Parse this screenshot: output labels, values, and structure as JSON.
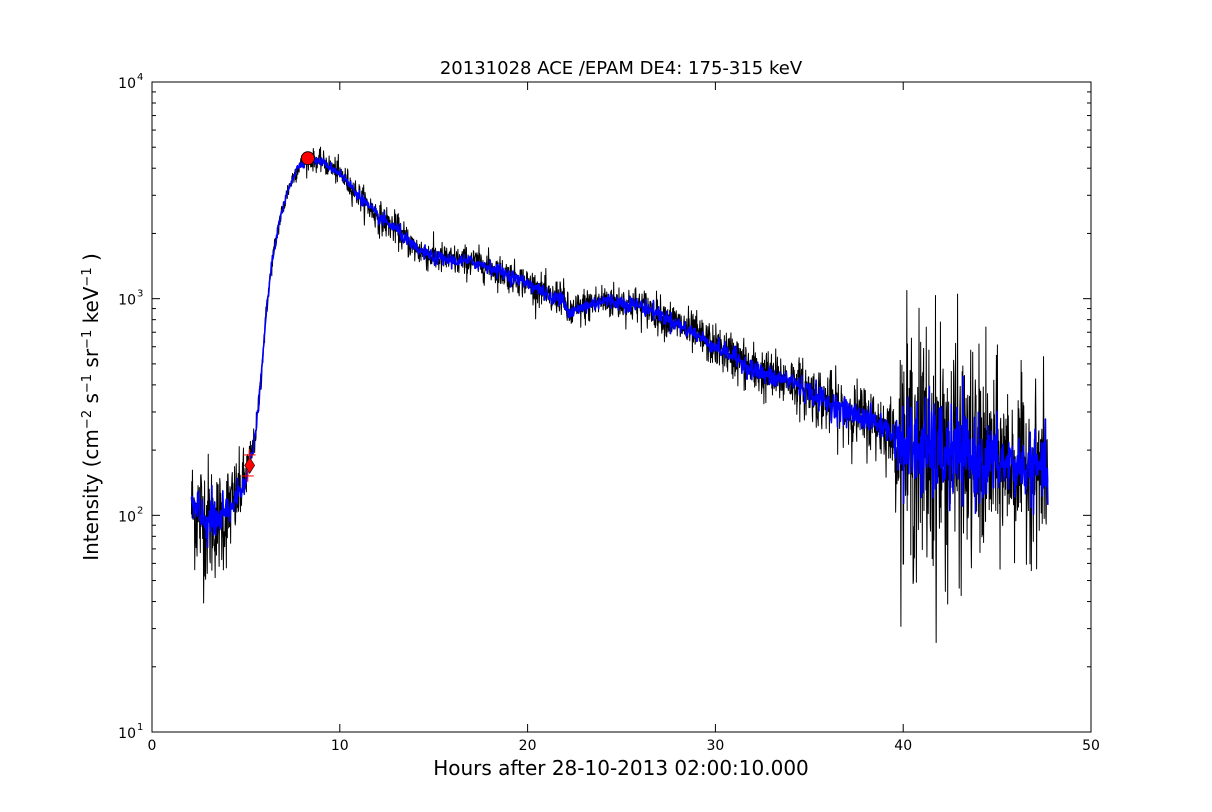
{
  "chart_data": {
    "type": "line",
    "title": "20131028 ACE /EPAM DE4: 175-315 keV",
    "xlabel": "Hours after 28-10-2013 02:00:10.000",
    "ylabel": {
      "base": "Intensity (cm",
      "sup1": "−2",
      "mid1": " s",
      "sup2": "−1",
      "mid2": " sr",
      "sup3": "−1",
      "mid3": " keV",
      "sup4": "−1",
      "end": " )"
    },
    "xlim": [
      0,
      50
    ],
    "ylim": [
      10,
      10000
    ],
    "yscale": "log",
    "grid": false,
    "x_ticks": [
      0,
      10,
      20,
      30,
      40,
      50
    ],
    "x_tick_labels": [
      "0",
      "10",
      "20",
      "30",
      "40",
      "50"
    ],
    "y_ticks": [
      10,
      100,
      1000,
      10000
    ],
    "y_tick_labels": [
      {
        "base": "10",
        "exp": "1"
      },
      {
        "base": "10",
        "exp": "2"
      },
      {
        "base": "10",
        "exp": "3"
      },
      {
        "base": "10",
        "exp": "4"
      }
    ],
    "series": [
      {
        "role": "raw",
        "color": "#000000",
        "x": [
          2.1,
          2.5,
          3.0,
          3.5,
          4.0,
          4.5,
          4.9,
          5.2,
          5.5,
          5.8,
          6.1,
          6.4,
          6.8,
          7.3,
          7.8,
          8.3,
          9.0,
          10.0,
          11.0,
          12.0,
          13.0,
          14.0,
          15.0,
          16.0,
          17.0,
          18.0,
          19.0,
          20.0,
          20.8,
          21.3,
          21.8,
          22.2,
          22.6,
          23.0,
          24.0,
          25.0,
          26.0,
          27.0,
          28.0,
          29.0,
          30.0,
          31.0,
          32.0,
          33.0,
          34.0,
          35.0,
          36.0,
          37.0,
          38.0,
          39.0,
          39.5,
          40.0,
          41.0,
          42.0,
          43.0,
          44.0,
          45.0,
          46.0,
          47.0,
          47.7
        ],
        "y": [
          110,
          100,
          95,
          92,
          102,
          120,
          145,
          170,
          230,
          420,
          900,
          1500,
          2300,
          3300,
          4100,
          4400,
          4300,
          3800,
          3000,
          2400,
          2100,
          1700,
          1550,
          1500,
          1480,
          1400,
          1280,
          1180,
          1080,
          980,
          1050,
          850,
          880,
          920,
          980,
          960,
          930,
          850,
          760,
          680,
          600,
          540,
          470,
          430,
          420,
          370,
          330,
          300,
          280,
          255,
          230,
          210,
          200,
          195,
          185,
          180,
          175,
          170,
          165,
          160
        ],
        "noise": [
          0.2,
          0.25,
          0.25,
          0.2,
          0.2,
          0.15,
          0.12,
          0.1,
          0.05,
          0.05,
          0.04,
          0.04,
          0.04,
          0.04,
          0.04,
          0.04,
          0.04,
          0.05,
          0.05,
          0.06,
          0.06,
          0.06,
          0.06,
          0.06,
          0.06,
          0.06,
          0.06,
          0.06,
          0.06,
          0.07,
          0.07,
          0.07,
          0.07,
          0.07,
          0.07,
          0.07,
          0.07,
          0.07,
          0.08,
          0.08,
          0.08,
          0.09,
          0.1,
          0.1,
          0.1,
          0.11,
          0.12,
          0.12,
          0.13,
          0.13,
          0.14,
          0.45,
          0.5,
          0.5,
          0.45,
          0.4,
          0.35,
          0.3,
          0.3,
          0.3
        ]
      },
      {
        "role": "smoothed",
        "color": "#0000ff",
        "x": [
          2.1,
          2.5,
          3.0,
          3.5,
          4.0,
          4.5,
          4.9,
          5.2,
          5.5,
          5.8,
          6.1,
          6.4,
          6.8,
          7.3,
          7.8,
          8.3,
          9.0,
          10.0,
          11.0,
          12.0,
          13.0,
          14.0,
          15.0,
          16.0,
          17.0,
          18.0,
          19.0,
          20.0,
          20.8,
          21.3,
          21.8,
          22.2,
          22.6,
          23.0,
          24.0,
          25.0,
          26.0,
          27.0,
          28.0,
          29.0,
          30.0,
          31.0,
          32.0,
          33.0,
          34.0,
          35.0,
          36.0,
          37.0,
          38.0,
          39.0,
          39.5,
          40.0,
          41.0,
          42.0,
          43.0,
          44.0,
          45.0,
          46.0,
          47.0,
          47.7
        ],
        "y": [
          110,
          100,
          95,
          92,
          102,
          120,
          145,
          170,
          230,
          420,
          900,
          1500,
          2300,
          3300,
          4100,
          4400,
          4300,
          3800,
          3000,
          2400,
          2100,
          1700,
          1550,
          1500,
          1480,
          1400,
          1280,
          1180,
          1080,
          980,
          1050,
          850,
          880,
          920,
          980,
          960,
          930,
          850,
          760,
          680,
          600,
          540,
          470,
          430,
          420,
          370,
          330,
          300,
          280,
          255,
          230,
          210,
          200,
          195,
          185,
          180,
          175,
          170,
          165,
          160
        ],
        "noise": [
          0.08,
          0.1,
          0.1,
          0.08,
          0.08,
          0.06,
          0.05,
          0.04,
          0.02,
          0.02,
          0.015,
          0.015,
          0.015,
          0.015,
          0.015,
          0.015,
          0.015,
          0.02,
          0.02,
          0.025,
          0.025,
          0.025,
          0.025,
          0.025,
          0.025,
          0.025,
          0.025,
          0.025,
          0.025,
          0.03,
          0.03,
          0.03,
          0.03,
          0.03,
          0.03,
          0.03,
          0.03,
          0.03,
          0.03,
          0.03,
          0.03,
          0.035,
          0.04,
          0.04,
          0.04,
          0.045,
          0.05,
          0.05,
          0.05,
          0.05,
          0.06,
          0.18,
          0.2,
          0.2,
          0.18,
          0.16,
          0.14,
          0.12,
          0.12,
          0.12
        ]
      }
    ],
    "markers": [
      {
        "kind": "diamond",
        "x": 5.2,
        "y": 170,
        "color": "#ff0000"
      },
      {
        "kind": "circle",
        "x": 8.3,
        "y": 4450,
        "color": "#ff0000"
      },
      {
        "kind": "plus",
        "x": 5.2,
        "y": 190,
        "color": "#ff0000"
      },
      {
        "kind": "plus",
        "x": 5.1,
        "y": 152,
        "color": "#ff0000"
      }
    ]
  }
}
